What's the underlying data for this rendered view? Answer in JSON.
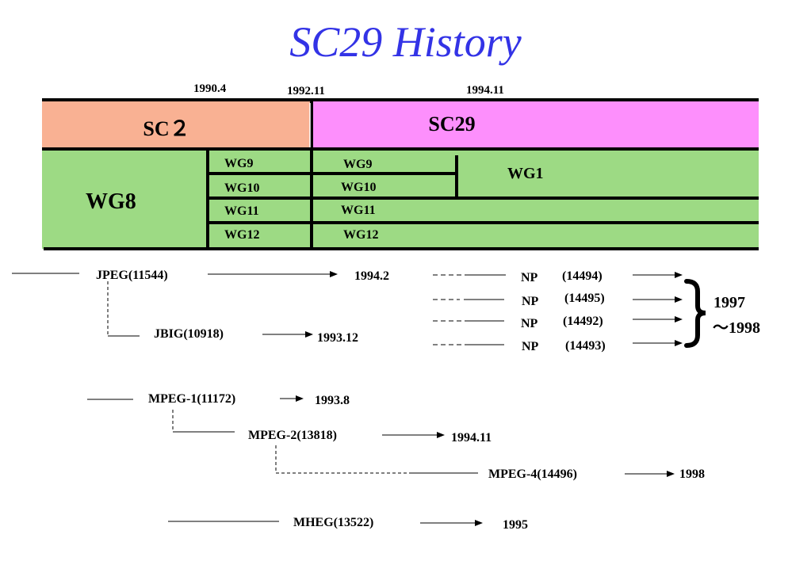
{
  "title": "SC29 History",
  "colors": {
    "title": "#3333e6",
    "sc2_fill": "#f9b193",
    "sc29_fill": "#fd8ffc",
    "wg_fill": "#9dda84"
  },
  "years_top": {
    "y1": "1990.4",
    "y2": "1992.11",
    "y3": "1994.11"
  },
  "bars": {
    "sc2": "SC２",
    "sc29": "SC29"
  },
  "working_groups": {
    "wg8": "WG8",
    "left": [
      "WG9",
      "WG10",
      "WG11",
      "WG12"
    ],
    "right": [
      "WG9",
      "WG10",
      "WG11",
      "WG12"
    ],
    "wg1": "WG1"
  },
  "timeline": {
    "jpeg": "JPEG(11544)",
    "jpeg_date": "1994.2",
    "jbig": "JBIG(10918)",
    "jbig_date": "1993.12",
    "np_items": [
      {
        "label": "NP",
        "code": "(14494)"
      },
      {
        "label": "NP",
        "code": "(14495)"
      },
      {
        "label": "NP",
        "code": "(14492)"
      },
      {
        "label": "NP",
        "code": "(14493)"
      }
    ],
    "np_range_1": "1997",
    "np_range_2": "～1998",
    "mpeg1": "MPEG-1(11172)",
    "mpeg1_date": "1993.8",
    "mpeg2": "MPEG-2(13818)",
    "mpeg2_date": "1994.11",
    "mpeg4": "MPEG-4(14496)",
    "mpeg4_date": "1998",
    "mheg": "MHEG(13522)",
    "mheg_date": "1995"
  }
}
